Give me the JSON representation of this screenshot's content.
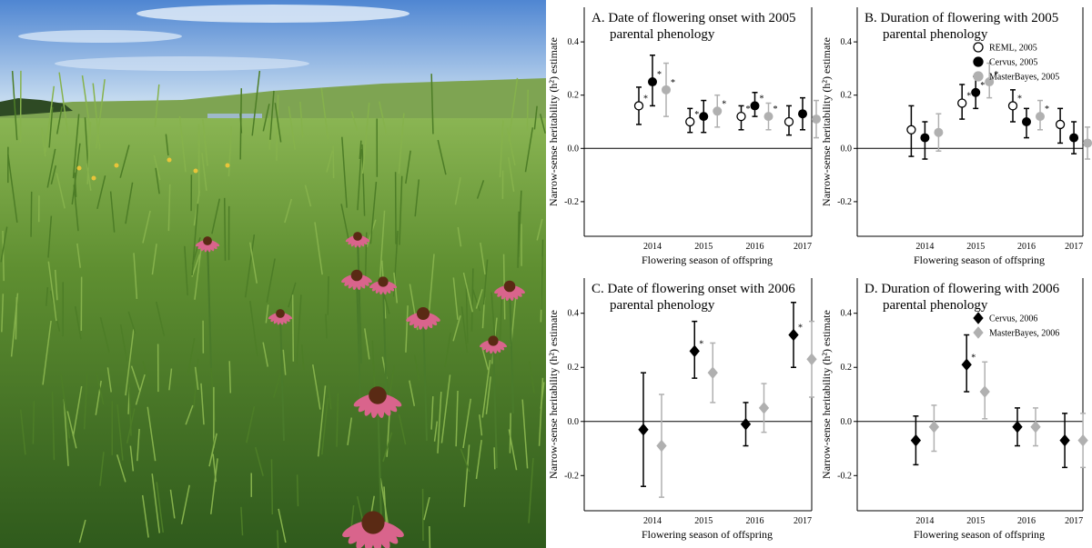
{
  "photo": {
    "description_icon": "prairie-coneflower-photo",
    "colors": {
      "sky_top": "#5b8fd6",
      "sky_bottom": "#bfd8ee",
      "grass_dark": "#3f6a22",
      "grass_light": "#7fae45",
      "petal": "#d9648c",
      "cone": "#5a2a14"
    }
  },
  "colors": {
    "reml": "#ffffff",
    "cervus": "#000000",
    "masterbayes": "#b0b0b0"
  },
  "chart_data": [
    {
      "panel": "A",
      "type": "scatter",
      "title_lines": [
        "A. Date of flowering onset with 2005",
        "parental phenology"
      ],
      "xlabel": "Flowering season of offspring",
      "ylabel": "Narrow-sense heritability (h²) estimate",
      "ylim": [
        -0.33,
        0.53
      ],
      "yticks": [
        "0.4",
        "0.2",
        "0.0",
        "-0.2"
      ],
      "categories": [
        "2014",
        "2015",
        "2016",
        "2017"
      ],
      "series": [
        {
          "name": "REML, 2005",
          "marker": "circle-open",
          "values": [
            0.16,
            0.1,
            0.12,
            0.1
          ],
          "lower": [
            0.09,
            0.06,
            0.07,
            0.05
          ],
          "upper": [
            0.23,
            0.15,
            0.16,
            0.16
          ],
          "sig": [
            true,
            true,
            true,
            false
          ]
        },
        {
          "name": "Cervus, 2005",
          "marker": "circle",
          "values": [
            0.25,
            0.12,
            0.16,
            0.13
          ],
          "lower": [
            0.16,
            0.06,
            0.12,
            0.07
          ],
          "upper": [
            0.35,
            0.18,
            0.21,
            0.19
          ],
          "sig": [
            true,
            false,
            true,
            false
          ]
        },
        {
          "name": "MasterBayes, 2005",
          "marker": "circle-gray",
          "values": [
            0.22,
            0.14,
            0.12,
            0.11
          ],
          "lower": [
            0.12,
            0.08,
            0.07,
            0.04
          ],
          "upper": [
            0.32,
            0.2,
            0.17,
            0.18
          ],
          "sig": [
            true,
            true,
            true,
            false
          ]
        }
      ]
    },
    {
      "panel": "B",
      "type": "scatter",
      "title_lines": [
        "B. Duration of flowering with 2005",
        "parental phenology"
      ],
      "xlabel": "Flowering season of offspring",
      "ylabel": "Narrow-sense heritability (h²) estimate",
      "ylim": [
        -0.33,
        0.53
      ],
      "yticks": [
        "0.4",
        "0.2",
        "0.0",
        "-0.2"
      ],
      "categories": [
        "2014",
        "2015",
        "2016",
        "2017"
      ],
      "legend_entries": [
        "REML, 2005",
        "Cervus, 2005",
        "MasterBayes, 2005"
      ],
      "series": [
        {
          "name": "REML, 2005",
          "marker": "circle-open",
          "values": [
            0.07,
            0.17,
            0.16,
            0.09
          ],
          "lower": [
            -0.03,
            0.11,
            0.1,
            0.02
          ],
          "upper": [
            0.16,
            0.24,
            0.22,
            0.15
          ],
          "sig": [
            false,
            true,
            true,
            false
          ]
        },
        {
          "name": "Cervus, 2005",
          "marker": "circle",
          "values": [
            0.04,
            0.21,
            0.1,
            0.04
          ],
          "lower": [
            -0.04,
            0.15,
            0.04,
            -0.02
          ],
          "upper": [
            0.1,
            0.27,
            0.15,
            0.1
          ],
          "sig": [
            false,
            true,
            false,
            false
          ]
        },
        {
          "name": "MasterBayes, 2005",
          "marker": "circle-gray",
          "values": [
            0.06,
            0.25,
            0.12,
            0.02
          ],
          "lower": [
            -0.01,
            0.19,
            0.07,
            -0.04
          ],
          "upper": [
            0.13,
            0.32,
            0.18,
            0.08
          ],
          "sig": [
            false,
            true,
            true,
            false
          ]
        }
      ]
    },
    {
      "panel": "C",
      "type": "scatter",
      "title_lines": [
        "C. Date of flowering onset with 2006",
        "parental phenology"
      ],
      "xlabel": "Flowering season of offspring",
      "ylabel": "Narrow-sense heritability (h²) estimate",
      "ylim": [
        -0.33,
        0.53
      ],
      "yticks": [
        "0.4",
        "0.2",
        "0.0",
        "-0.2"
      ],
      "categories": [
        "2014",
        "2015",
        "2016",
        "2017"
      ],
      "series": [
        {
          "name": "Cervus, 2006",
          "marker": "diamond",
          "values": [
            -0.03,
            0.26,
            -0.01,
            0.32
          ],
          "lower": [
            -0.24,
            0.16,
            -0.09,
            0.2
          ],
          "upper": [
            0.18,
            0.37,
            0.07,
            0.44
          ],
          "sig": [
            false,
            true,
            false,
            true
          ]
        },
        {
          "name": "MasterBayes, 2006",
          "marker": "diamond-gray",
          "values": [
            -0.09,
            0.18,
            0.05,
            0.23
          ],
          "lower": [
            -0.28,
            0.07,
            -0.04,
            0.09
          ],
          "upper": [
            0.1,
            0.29,
            0.14,
            0.37
          ],
          "sig": [
            false,
            false,
            false,
            false
          ]
        }
      ]
    },
    {
      "panel": "D",
      "type": "scatter",
      "title_lines": [
        "D. Duration of flowering with 2006",
        "parental phenology"
      ],
      "xlabel": "Flowering season of offspring",
      "ylabel": "Narrow-sense heritability (h²) estimate",
      "ylim": [
        -0.33,
        0.53
      ],
      "yticks": [
        "0.4",
        "0.2",
        "0.0",
        "-0.2"
      ],
      "categories": [
        "2014",
        "2015",
        "2016",
        "2017"
      ],
      "legend_entries": [
        "Cervus, 2006",
        "MasterBayes, 2006"
      ],
      "series": [
        {
          "name": "Cervus, 2006",
          "marker": "diamond",
          "values": [
            -0.07,
            0.21,
            -0.02,
            -0.07
          ],
          "lower": [
            -0.16,
            0.11,
            -0.09,
            -0.17
          ],
          "upper": [
            0.02,
            0.32,
            0.05,
            0.03
          ],
          "sig": [
            false,
            true,
            false,
            false
          ]
        },
        {
          "name": "MasterBayes, 2006",
          "marker": "diamond-gray",
          "values": [
            -0.02,
            0.11,
            -0.02,
            -0.07
          ],
          "lower": [
            -0.11,
            0.01,
            -0.09,
            -0.17
          ],
          "upper": [
            0.06,
            0.22,
            0.05,
            0.03
          ],
          "sig": [
            false,
            false,
            false,
            false
          ]
        }
      ]
    }
  ]
}
